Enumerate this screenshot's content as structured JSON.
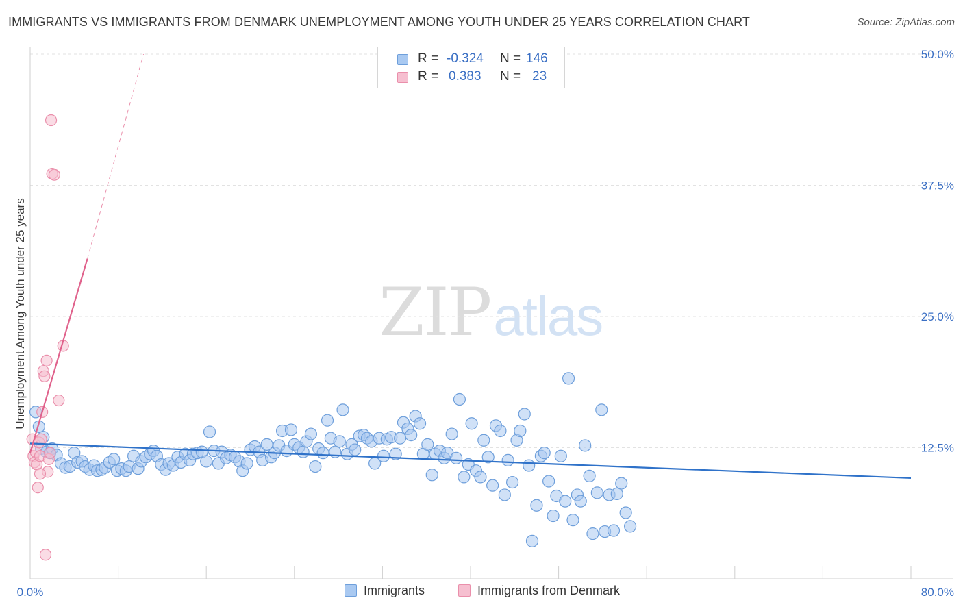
{
  "header": {
    "title": "IMMIGRANTS VS IMMIGRANTS FROM DENMARK UNEMPLOYMENT AMONG YOUTH UNDER 25 YEARS CORRELATION CHART",
    "source": "Source: ZipAtlas.com"
  },
  "watermark": {
    "zip": "ZIP",
    "atlas": "atlas"
  },
  "legend_top": {
    "rows": [
      {
        "r_label": "R =",
        "r_value": "-0.324",
        "n_label": "N =",
        "n_value": "146"
      },
      {
        "r_label": "R =",
        "r_value": "0.383",
        "n_label": "N =",
        "n_value": "23"
      }
    ]
  },
  "legend_bottom": {
    "items": [
      "Immigrants",
      "Immigrants from Denmark"
    ]
  },
  "colors": {
    "blue_fill": "#a9c9f1",
    "blue_stroke": "#6e9fdb",
    "blue_line": "#2f72c9",
    "pink_fill": "#f6bfd0",
    "pink_stroke": "#ea8fab",
    "pink_line": "#e0628c",
    "grid": "#e2e2e2",
    "tick_text": "#3a6fc4"
  },
  "chart_data": {
    "type": "scatter",
    "title": "IMMIGRANTS VS IMMIGRANTS FROM DENMARK UNEMPLOYMENT AMONG YOUTH UNDER 25 YEARS CORRELATION CHART",
    "xlabel": "",
    "ylabel": "Unemployment Among Youth under 25 years",
    "xlim": [
      0,
      80
    ],
    "ylim": [
      0,
      50
    ],
    "x_tick_labels": [
      "0.0%",
      "80.0%"
    ],
    "y_ticks": [
      12.5,
      25,
      37.5,
      50
    ],
    "y_tick_labels": [
      "12.5%",
      "25.0%",
      "37.5%",
      "50.0%"
    ],
    "grid": true,
    "series": [
      {
        "name": "Immigrants",
        "r": -0.324,
        "n": 146,
        "trend": {
          "x0": 0,
          "y0": 12.9,
          "x1": 80,
          "y1": 9.6
        },
        "points": [
          [
            0.5,
            15.9
          ],
          [
            0.8,
            14.5
          ],
          [
            1.0,
            12.4
          ],
          [
            1.2,
            13.5
          ],
          [
            1.5,
            12.1
          ],
          [
            1.8,
            12.0
          ],
          [
            2.0,
            12.4
          ],
          [
            2.4,
            11.8
          ],
          [
            2.8,
            11.0
          ],
          [
            3.2,
            10.6
          ],
          [
            3.6,
            10.7
          ],
          [
            4.0,
            12.0
          ],
          [
            4.3,
            11.1
          ],
          [
            4.7,
            11.2
          ],
          [
            5.0,
            10.7
          ],
          [
            5.4,
            10.4
          ],
          [
            5.8,
            10.8
          ],
          [
            6.1,
            10.3
          ],
          [
            6.5,
            10.4
          ],
          [
            6.8,
            10.6
          ],
          [
            7.2,
            11.1
          ],
          [
            7.6,
            11.4
          ],
          [
            7.9,
            10.3
          ],
          [
            8.3,
            10.5
          ],
          [
            8.7,
            10.3
          ],
          [
            9.0,
            10.7
          ],
          [
            9.4,
            11.7
          ],
          [
            9.8,
            10.5
          ],
          [
            10.1,
            11.2
          ],
          [
            10.5,
            11.6
          ],
          [
            10.9,
            11.9
          ],
          [
            11.2,
            12.2
          ],
          [
            11.5,
            11.7
          ],
          [
            11.9,
            10.9
          ],
          [
            12.3,
            10.4
          ],
          [
            12.6,
            11.0
          ],
          [
            13.0,
            10.8
          ],
          [
            13.4,
            11.6
          ],
          [
            13.7,
            11.1
          ],
          [
            14.1,
            11.9
          ],
          [
            14.5,
            11.3
          ],
          [
            14.8,
            11.9
          ],
          [
            15.2,
            12.0
          ],
          [
            15.6,
            12.1
          ],
          [
            16.0,
            11.2
          ],
          [
            16.3,
            14.0
          ],
          [
            16.7,
            12.2
          ],
          [
            17.1,
            11.0
          ],
          [
            17.4,
            12.1
          ],
          [
            17.8,
            11.5
          ],
          [
            18.2,
            11.8
          ],
          [
            18.6,
            11.6
          ],
          [
            19.0,
            11.2
          ],
          [
            19.3,
            10.3
          ],
          [
            19.7,
            11.0
          ],
          [
            20.0,
            12.3
          ],
          [
            20.4,
            12.6
          ],
          [
            20.8,
            12.1
          ],
          [
            21.1,
            11.3
          ],
          [
            21.5,
            12.8
          ],
          [
            21.9,
            11.6
          ],
          [
            22.2,
            12.0
          ],
          [
            22.6,
            12.7
          ],
          [
            22.9,
            14.1
          ],
          [
            23.3,
            12.2
          ],
          [
            23.7,
            14.2
          ],
          [
            24.0,
            12.8
          ],
          [
            24.4,
            12.5
          ],
          [
            24.8,
            12.1
          ],
          [
            25.1,
            13.1
          ],
          [
            25.5,
            13.8
          ],
          [
            25.9,
            10.7
          ],
          [
            26.2,
            12.4
          ],
          [
            26.6,
            12.0
          ],
          [
            27.0,
            15.1
          ],
          [
            27.3,
            13.4
          ],
          [
            27.7,
            12.1
          ],
          [
            28.1,
            13.1
          ],
          [
            28.4,
            16.1
          ],
          [
            28.8,
            11.9
          ],
          [
            29.2,
            12.8
          ],
          [
            29.5,
            12.3
          ],
          [
            29.9,
            13.6
          ],
          [
            30.3,
            13.7
          ],
          [
            30.6,
            13.4
          ],
          [
            31.0,
            13.1
          ],
          [
            31.3,
            11.0
          ],
          [
            31.7,
            13.4
          ],
          [
            32.1,
            11.7
          ],
          [
            32.4,
            13.3
          ],
          [
            32.8,
            13.5
          ],
          [
            33.2,
            11.9
          ],
          [
            33.6,
            13.4
          ],
          [
            33.9,
            14.9
          ],
          [
            34.3,
            14.3
          ],
          [
            34.6,
            13.7
          ],
          [
            35.0,
            15.5
          ],
          [
            35.4,
            14.8
          ],
          [
            35.7,
            11.9
          ],
          [
            36.1,
            12.8
          ],
          [
            36.5,
            9.9
          ],
          [
            36.8,
            11.9
          ],
          [
            37.2,
            12.2
          ],
          [
            37.6,
            11.5
          ],
          [
            37.9,
            12.0
          ],
          [
            38.3,
            13.8
          ],
          [
            38.7,
            11.5
          ],
          [
            39.0,
            17.1
          ],
          [
            39.4,
            9.7
          ],
          [
            39.8,
            10.9
          ],
          [
            40.1,
            14.8
          ],
          [
            40.5,
            10.3
          ],
          [
            40.9,
            9.7
          ],
          [
            41.2,
            13.2
          ],
          [
            41.6,
            11.6
          ],
          [
            42.0,
            8.9
          ],
          [
            42.3,
            14.6
          ],
          [
            42.7,
            14.1
          ],
          [
            43.1,
            8.0
          ],
          [
            43.4,
            11.3
          ],
          [
            43.8,
            9.2
          ],
          [
            44.2,
            13.2
          ],
          [
            44.5,
            14.1
          ],
          [
            44.9,
            15.7
          ],
          [
            45.3,
            10.8
          ],
          [
            45.6,
            3.6
          ],
          [
            46.0,
            7.0
          ],
          [
            46.4,
            11.7
          ],
          [
            46.7,
            12.0
          ],
          [
            47.1,
            9.3
          ],
          [
            47.5,
            6.0
          ],
          [
            47.8,
            7.9
          ],
          [
            48.2,
            11.7
          ],
          [
            48.6,
            7.4
          ],
          [
            48.9,
            19.1
          ],
          [
            49.3,
            5.6
          ],
          [
            49.7,
            8.0
          ],
          [
            50.0,
            7.4
          ],
          [
            50.4,
            12.7
          ],
          [
            50.8,
            9.8
          ],
          [
            51.1,
            4.3
          ],
          [
            51.5,
            8.2
          ],
          [
            51.9,
            16.1
          ],
          [
            52.2,
            4.5
          ],
          [
            52.6,
            8.0
          ],
          [
            53.0,
            4.6
          ],
          [
            53.3,
            8.1
          ],
          [
            53.7,
            9.1
          ],
          [
            54.1,
            6.3
          ],
          [
            54.5,
            5.0
          ]
        ]
      },
      {
        "name": "Immigrants from Denmark",
        "r": 0.383,
        "n": 23,
        "trend": {
          "x0": 0,
          "y0": 12.0,
          "x1": 5.2,
          "y1": 30.5,
          "dash_x1": 10.3,
          "dash_y1": 50.0
        },
        "points": [
          [
            0.2,
            13.3
          ],
          [
            0.3,
            11.7
          ],
          [
            0.4,
            11.1
          ],
          [
            0.5,
            12.1
          ],
          [
            0.6,
            10.9
          ],
          [
            0.7,
            8.7
          ],
          [
            0.8,
            13.0
          ],
          [
            0.9,
            11.7
          ],
          [
            1.0,
            13.3
          ],
          [
            1.1,
            15.9
          ],
          [
            1.2,
            19.8
          ],
          [
            1.3,
            19.3
          ],
          [
            1.4,
            2.3
          ],
          [
            1.5,
            20.8
          ],
          [
            1.6,
            10.2
          ],
          [
            1.7,
            11.4
          ],
          [
            1.8,
            12.0
          ],
          [
            1.9,
            43.7
          ],
          [
            2.0,
            38.6
          ],
          [
            2.2,
            38.5
          ],
          [
            2.6,
            17.0
          ],
          [
            3.0,
            22.2
          ],
          [
            0.9,
            10.0
          ]
        ]
      }
    ]
  },
  "axes": {
    "y_title": "Unemployment Among Youth under 25 years",
    "x_min_label": "0.0%",
    "x_max_label": "80.0%"
  }
}
